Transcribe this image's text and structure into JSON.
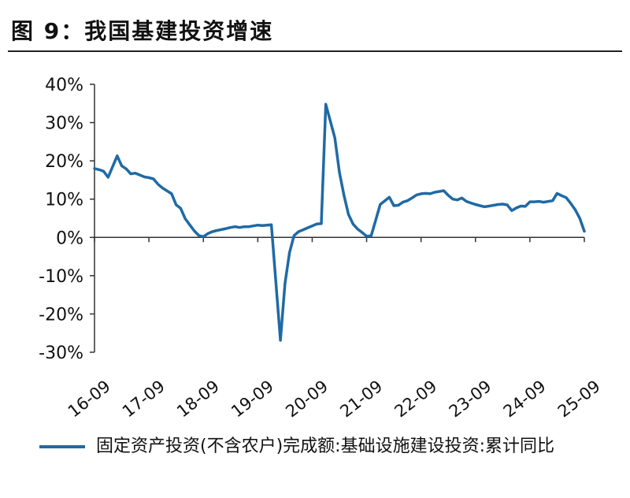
{
  "figure": {
    "title": "图 9：我国基建投资增速"
  },
  "colors": {
    "series": "#1f6aa5",
    "axis": "#333333"
  },
  "chart_data": {
    "type": "line",
    "title": "图 9：我国基建投资增速",
    "xlabel": "",
    "ylabel": "",
    "ylim": [
      -30,
      40
    ],
    "y_ticks": [
      -30,
      -20,
      -10,
      0,
      10,
      20,
      30,
      40
    ],
    "y_tick_labels": [
      "-30%",
      "-20%",
      "-10%",
      "0%",
      "10%",
      "20%",
      "30%",
      "40%"
    ],
    "x_tick_labels": [
      "16-09",
      "17-09",
      "18-09",
      "19-09",
      "20-09",
      "21-09",
      "22-09",
      "23-09",
      "24-09",
      "25-09"
    ],
    "x_range": [
      "2016-09",
      "2025-09"
    ],
    "grid": false,
    "legend_position": "bottom",
    "series": [
      {
        "name": "固定资产投资(不含农户)完成额:基础设施建设投资:累计同比",
        "color": "#1f6aa5",
        "x": [
          "2016-09",
          "2016-10",
          "2016-11",
          "2016-12",
          "2017-02",
          "2017-03",
          "2017-04",
          "2017-05",
          "2017-06",
          "2017-07",
          "2017-08",
          "2017-09",
          "2017-10",
          "2017-11",
          "2017-12",
          "2018-02",
          "2018-03",
          "2018-04",
          "2018-05",
          "2018-06",
          "2018-07",
          "2018-08",
          "2018-09",
          "2018-10",
          "2018-11",
          "2018-12",
          "2019-02",
          "2019-03",
          "2019-04",
          "2019-05",
          "2019-06",
          "2019-07",
          "2019-08",
          "2019-09",
          "2019-10",
          "2019-11",
          "2019-12",
          "2020-02",
          "2020-03",
          "2020-04",
          "2020-05",
          "2020-06",
          "2020-07",
          "2020-08",
          "2020-09",
          "2020-10",
          "2020-11",
          "2020-12",
          "2021-02",
          "2021-03",
          "2021-04",
          "2021-05",
          "2021-06",
          "2021-07",
          "2021-08",
          "2021-09",
          "2021-10",
          "2021-11",
          "2021-12",
          "2022-02",
          "2022-03",
          "2022-04",
          "2022-05",
          "2022-06",
          "2022-07",
          "2022-08",
          "2022-09",
          "2022-10",
          "2022-11",
          "2022-12",
          "2023-02",
          "2023-03",
          "2023-04",
          "2023-05",
          "2023-06",
          "2023-07",
          "2023-08",
          "2023-09",
          "2023-10",
          "2023-11",
          "2023-12",
          "2024-02",
          "2024-03",
          "2024-04",
          "2024-05",
          "2024-06",
          "2024-07",
          "2024-08",
          "2024-09",
          "2024-10",
          "2024-11",
          "2024-12",
          "2025-02",
          "2025-03",
          "2025-04",
          "2025-05",
          "2025-06",
          "2025-07",
          "2025-08",
          "2025-09"
        ],
        "values": [
          18.0,
          17.7,
          17.3,
          15.7,
          21.3,
          18.7,
          17.9,
          16.6,
          16.8,
          16.3,
          15.8,
          15.6,
          15.3,
          13.9,
          12.9,
          11.4,
          8.5,
          7.6,
          4.9,
          3.3,
          1.7,
          0.5,
          0.2,
          1.0,
          1.5,
          1.8,
          2.3,
          2.6,
          2.8,
          2.6,
          2.8,
          2.8,
          3.0,
          3.2,
          3.1,
          3.2,
          3.3,
          -26.9,
          -12.0,
          -4.0,
          0.5,
          1.5,
          2.0,
          2.5,
          3.0,
          3.5,
          3.6,
          34.8,
          26.0,
          17.0,
          11.0,
          6.0,
          3.5,
          2.2,
          1.3,
          0.3,
          0.4,
          4.5,
          8.6,
          10.5,
          8.3,
          8.4,
          9.2,
          9.6,
          10.3,
          11.1,
          11.4,
          11.5,
          11.4,
          11.8,
          12.2,
          11.0,
          10.0,
          9.8,
          10.3,
          9.4,
          9.0,
          8.6,
          8.3,
          8.0,
          8.2,
          8.6,
          8.7,
          8.5,
          7.0,
          7.7,
          8.2,
          8.1,
          9.3,
          9.3,
          9.4,
          9.2,
          9.6,
          11.5,
          10.9,
          10.4,
          8.9,
          7.2,
          5.0,
          1.6
        ]
      }
    ]
  },
  "legend": {
    "label": "固定资产投资(不含农户)完成额:基础设施建设投资:累计同比"
  }
}
